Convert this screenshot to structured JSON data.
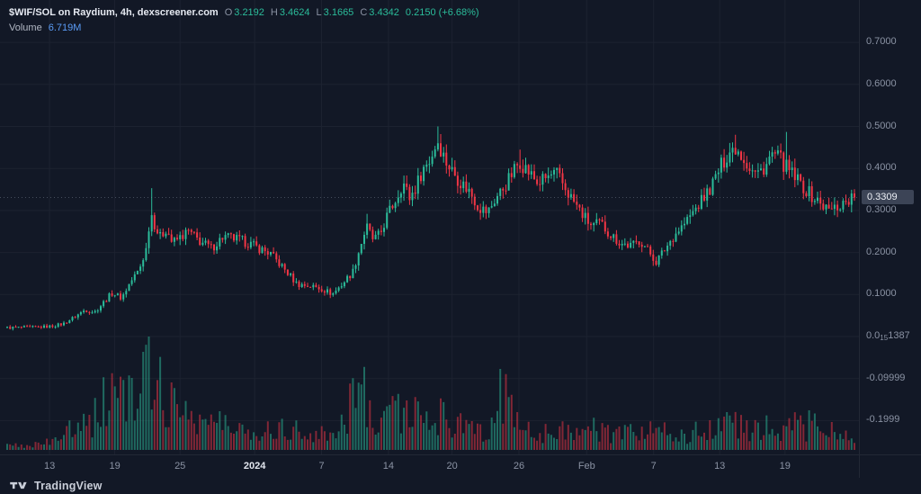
{
  "colors": {
    "bg": "#121826",
    "up": "#2bbc9a",
    "down": "#f23645",
    "vol_up": "rgba(43,188,154,0.5)",
    "vol_down": "rgba(242,54,69,0.5)",
    "grid": "rgba(199,210,226,0.06)",
    "last_line": "rgba(148,158,176,0.4)",
    "volume_value_blue": "#5b9cf6"
  },
  "legend": {
    "title": "$WIF/SOL on Raydium, 4h, dexscreener.com",
    "ohlc": [
      {
        "label": "O",
        "value": "3.2192"
      },
      {
        "label": "H",
        "value": "3.4624"
      },
      {
        "label": "L",
        "value": "3.1665"
      },
      {
        "label": "C",
        "value": "3.4342"
      }
    ],
    "change": "0.2150 (+6.68%)",
    "volume_label": "Volume",
    "volume_value": "6.719M"
  },
  "footer": {
    "brand": "TradingView"
  },
  "chart_data": {
    "type": "candlestick",
    "title": "$WIF/SOL on Raydium, 4h, dexscreener.com",
    "pair": "$WIF/SOL",
    "exchange": "Raydium",
    "interval": "4h",
    "source": "dexscreener.com",
    "legend_ohlc": {
      "open": "3.2192",
      "high": "3.4624",
      "low": "3.1665",
      "close": "3.4342",
      "change": "0.2150",
      "change_pct": "+6.68%"
    },
    "volume_display": "6.719M",
    "last_price": 0.3309,
    "last_price_label": "0.3309",
    "y_range": [
      -0.27,
      0.73
    ],
    "x_span": [
      "mid-Dec 2023",
      "late Feb 2024"
    ],
    "candle_count": 300,
    "y_ticks": [
      {
        "price": 0.7,
        "label": "0.7000"
      },
      {
        "price": 0.6,
        "label": "0.6000"
      },
      {
        "price": 0.5,
        "label": "0.5000"
      },
      {
        "price": 0.4,
        "label": "0.4000"
      },
      {
        "price": 0.3,
        "label": "0.3000"
      },
      {
        "price": 0.2,
        "label": "0.2000"
      },
      {
        "price": 0.1,
        "label": "0.1000"
      },
      {
        "price": -0.1,
        "label": "-0.09999"
      },
      {
        "price": -0.2,
        "label": "-0.1999"
      }
    ],
    "zero_tick": {
      "prefix": "0.0",
      "sub": "15",
      "suffix": "1387"
    },
    "x_ticks": [
      {
        "t": 0.05,
        "label": "13"
      },
      {
        "t": 0.127,
        "label": "19"
      },
      {
        "t": 0.204,
        "label": "25"
      },
      {
        "t": 0.292,
        "label": "2024",
        "major": true
      },
      {
        "t": 0.371,
        "label": "7"
      },
      {
        "t": 0.45,
        "label": "14"
      },
      {
        "t": 0.525,
        "label": "20"
      },
      {
        "t": 0.604,
        "label": "26"
      },
      {
        "t": 0.684,
        "label": "Feb"
      },
      {
        "t": 0.763,
        "label": "7"
      },
      {
        "t": 0.841,
        "label": "13"
      },
      {
        "t": 0.918,
        "label": "19"
      }
    ],
    "price_keypoints": [
      [
        0.0,
        0.021
      ],
      [
        0.034,
        0.022
      ],
      [
        0.05,
        0.024
      ],
      [
        0.066,
        0.03
      ],
      [
        0.082,
        0.05
      ],
      [
        0.092,
        0.064
      ],
      [
        0.103,
        0.058
      ],
      [
        0.114,
        0.082
      ],
      [
        0.124,
        0.104
      ],
      [
        0.135,
        0.092
      ],
      [
        0.145,
        0.128
      ],
      [
        0.156,
        0.16
      ],
      [
        0.165,
        0.215
      ],
      [
        0.169,
        0.3
      ],
      [
        0.174,
        0.268
      ],
      [
        0.18,
        0.235
      ],
      [
        0.188,
        0.258
      ],
      [
        0.195,
        0.222
      ],
      [
        0.204,
        0.236
      ],
      [
        0.214,
        0.25
      ],
      [
        0.225,
        0.23
      ],
      [
        0.241,
        0.21
      ],
      [
        0.255,
        0.238
      ],
      [
        0.27,
        0.232
      ],
      [
        0.283,
        0.224
      ],
      [
        0.292,
        0.215
      ],
      [
        0.31,
        0.198
      ],
      [
        0.326,
        0.163
      ],
      [
        0.342,
        0.125
      ],
      [
        0.358,
        0.12
      ],
      [
        0.371,
        0.114
      ],
      [
        0.384,
        0.101
      ],
      [
        0.395,
        0.124
      ],
      [
        0.408,
        0.155
      ],
      [
        0.416,
        0.21
      ],
      [
        0.424,
        0.262
      ],
      [
        0.432,
        0.23
      ],
      [
        0.44,
        0.242
      ],
      [
        0.448,
        0.285
      ],
      [
        0.459,
        0.328
      ],
      [
        0.467,
        0.368
      ],
      [
        0.475,
        0.33
      ],
      [
        0.483,
        0.358
      ],
      [
        0.49,
        0.398
      ],
      [
        0.499,
        0.42
      ],
      [
        0.508,
        0.468
      ],
      [
        0.517,
        0.42
      ],
      [
        0.524,
        0.398
      ],
      [
        0.535,
        0.368
      ],
      [
        0.546,
        0.345
      ],
      [
        0.556,
        0.31
      ],
      [
        0.567,
        0.295
      ],
      [
        0.577,
        0.33
      ],
      [
        0.588,
        0.36
      ],
      [
        0.599,
        0.398
      ],
      [
        0.605,
        0.418
      ],
      [
        0.616,
        0.39
      ],
      [
        0.626,
        0.365
      ],
      [
        0.637,
        0.378
      ],
      [
        0.648,
        0.388
      ],
      [
        0.658,
        0.355
      ],
      [
        0.669,
        0.32
      ],
      [
        0.679,
        0.29
      ],
      [
        0.69,
        0.262
      ],
      [
        0.7,
        0.27
      ],
      [
        0.711,
        0.245
      ],
      [
        0.724,
        0.222
      ],
      [
        0.737,
        0.215
      ],
      [
        0.747,
        0.23
      ],
      [
        0.758,
        0.2
      ],
      [
        0.766,
        0.178
      ],
      [
        0.777,
        0.21
      ],
      [
        0.788,
        0.244
      ],
      [
        0.8,
        0.27
      ],
      [
        0.811,
        0.3
      ],
      [
        0.822,
        0.33
      ],
      [
        0.832,
        0.36
      ],
      [
        0.841,
        0.4
      ],
      [
        0.851,
        0.438
      ],
      [
        0.86,
        0.452
      ],
      [
        0.868,
        0.43
      ],
      [
        0.877,
        0.4
      ],
      [
        0.885,
        0.385
      ],
      [
        0.896,
        0.41
      ],
      [
        0.904,
        0.435
      ],
      [
        0.913,
        0.42
      ],
      [
        0.921,
        0.398
      ],
      [
        0.93,
        0.378
      ],
      [
        0.938,
        0.36
      ],
      [
        0.949,
        0.335
      ],
      [
        0.959,
        0.318
      ],
      [
        0.97,
        0.3
      ],
      [
        0.981,
        0.31
      ],
      [
        0.991,
        0.324
      ],
      [
        1.0,
        0.331
      ]
    ],
    "wick_events": [
      {
        "t": 0.169,
        "high": 0.353
      },
      {
        "t": 0.424,
        "high": 0.292
      },
      {
        "t": 0.508,
        "high": 0.5
      },
      {
        "t": 0.605,
        "high": 0.445
      },
      {
        "t": 0.766,
        "low": 0.168
      },
      {
        "t": 0.86,
        "high": 0.48
      },
      {
        "t": 0.921,
        "high": 0.487
      }
    ],
    "volume_keypoints": [
      [
        0.0,
        0.04
      ],
      [
        0.04,
        0.06
      ],
      [
        0.06,
        0.1
      ],
      [
        0.08,
        0.28
      ],
      [
        0.09,
        0.45
      ],
      [
        0.1,
        0.32
      ],
      [
        0.115,
        0.5
      ],
      [
        0.128,
        0.72
      ],
      [
        0.145,
        0.5
      ],
      [
        0.158,
        0.62
      ],
      [
        0.168,
        0.82
      ],
      [
        0.175,
        1.0
      ],
      [
        0.185,
        0.58
      ],
      [
        0.2,
        0.46
      ],
      [
        0.215,
        0.4
      ],
      [
        0.23,
        0.32
      ],
      [
        0.25,
        0.28
      ],
      [
        0.27,
        0.22
      ],
      [
        0.29,
        0.2
      ],
      [
        0.31,
        0.22
      ],
      [
        0.33,
        0.26
      ],
      [
        0.35,
        0.18
      ],
      [
        0.37,
        0.15
      ],
      [
        0.385,
        0.22
      ],
      [
        0.4,
        0.34
      ],
      [
        0.415,
        0.78
      ],
      [
        0.428,
        0.46
      ],
      [
        0.44,
        0.32
      ],
      [
        0.455,
        0.48
      ],
      [
        0.47,
        0.42
      ],
      [
        0.49,
        0.3
      ],
      [
        0.51,
        0.36
      ],
      [
        0.53,
        0.26
      ],
      [
        0.55,
        0.2
      ],
      [
        0.57,
        0.26
      ],
      [
        0.585,
        0.6
      ],
      [
        0.6,
        0.3
      ],
      [
        0.62,
        0.22
      ],
      [
        0.64,
        0.18
      ],
      [
        0.66,
        0.22
      ],
      [
        0.68,
        0.26
      ],
      [
        0.7,
        0.18
      ],
      [
        0.72,
        0.15
      ],
      [
        0.74,
        0.18
      ],
      [
        0.76,
        0.24
      ],
      [
        0.78,
        0.18
      ],
      [
        0.8,
        0.16
      ],
      [
        0.82,
        0.2
      ],
      [
        0.835,
        0.26
      ],
      [
        0.85,
        0.32
      ],
      [
        0.865,
        0.26
      ],
      [
        0.88,
        0.2
      ],
      [
        0.895,
        0.24
      ],
      [
        0.91,
        0.18
      ],
      [
        0.925,
        0.3
      ],
      [
        0.94,
        0.22
      ],
      [
        0.955,
        0.32
      ],
      [
        0.97,
        0.2
      ],
      [
        0.985,
        0.14
      ],
      [
        1.0,
        0.1
      ]
    ]
  }
}
